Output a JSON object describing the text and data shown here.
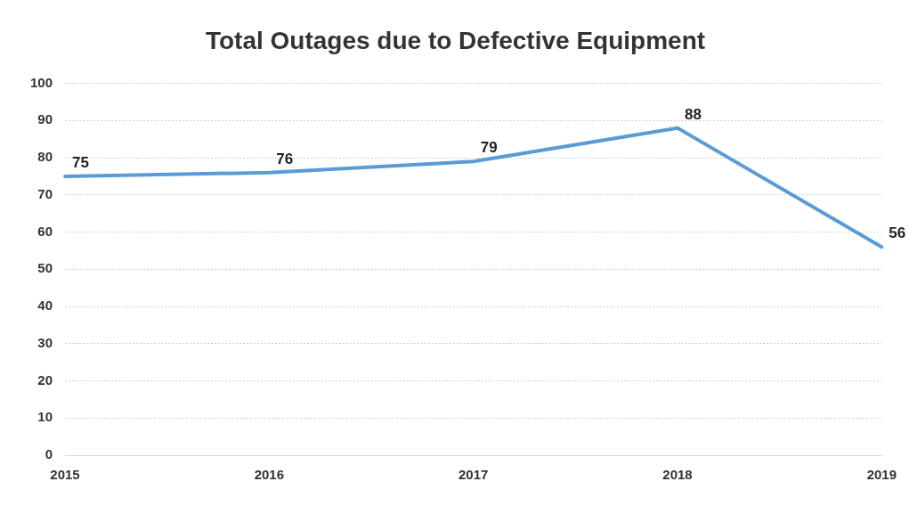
{
  "chart_data": {
    "type": "line",
    "title": "Total Outages due to Defective Equipment",
    "categories": [
      "2015",
      "2016",
      "2017",
      "2018",
      "2019"
    ],
    "series": [
      {
        "color": "#5b9bd5",
        "values": [
          75,
          76,
          79,
          88,
          56
        ]
      }
    ],
    "ylim": [
      0,
      100
    ],
    "yticks": [
      0,
      10,
      20,
      30,
      40,
      50,
      60,
      70,
      80,
      90,
      100
    ],
    "grid": "y",
    "legend": false,
    "marker": "none",
    "line_style": "solid",
    "data_labels": true
  }
}
